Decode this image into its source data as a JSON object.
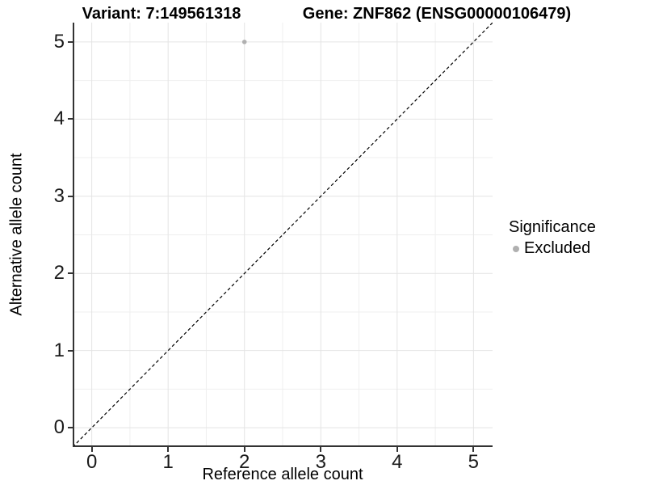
{
  "chart_data": {
    "type": "scatter",
    "titles": {
      "left": "Variant: 7:149561318",
      "right": "Gene: ZNF862 (ENSG00000106479)"
    },
    "xlabel": "Reference allele count",
    "ylabel": "Alternative allele count",
    "xlim": [
      -0.25,
      5.25
    ],
    "ylim": [
      -0.25,
      5.25
    ],
    "x_ticks": [
      0,
      1,
      2,
      3,
      4,
      5
    ],
    "y_ticks": [
      0,
      1,
      2,
      3,
      4,
      5
    ],
    "grid": "major and minor, light gray on white",
    "identity_line": {
      "type": "abline",
      "slope": 1,
      "intercept": 0,
      "style": "dashed"
    },
    "points": [
      {
        "x": 2,
        "y": 5,
        "series": "Excluded"
      }
    ],
    "legend": {
      "position": "right",
      "title": "Significance",
      "items": [
        {
          "label": "Excluded",
          "color": "#b0b0b0"
        }
      ]
    },
    "colors": {
      "point": "#b0b0b0",
      "grid_major": "#e4e4e4",
      "grid_minor": "#efefef",
      "axis_line": "#333333",
      "identity_line": "#000000",
      "background": "#ffffff"
    }
  }
}
